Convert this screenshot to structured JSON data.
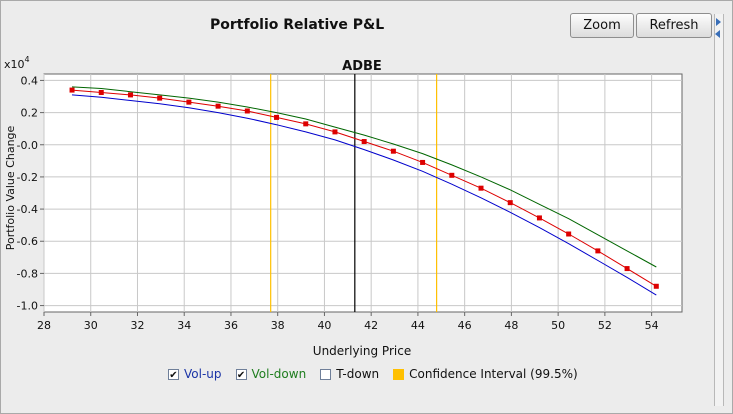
{
  "panel": {
    "title": "Portfolio Relative P&L",
    "zoom_label": "Zoom",
    "refresh_label": "Refresh"
  },
  "colors": {
    "vol_up": "#0000cc",
    "vol_down": "#006600",
    "tdown": "#dd0000",
    "confidence": "#ffc000",
    "current_price": "#000000"
  },
  "legend": {
    "items": [
      {
        "label": "Vol-up",
        "checked": true,
        "checkmark": "✔",
        "color": "#1a33a6"
      },
      {
        "label": "Vol-down",
        "checked": true,
        "checkmark": "✔",
        "color": "#1e7d1e"
      },
      {
        "label": "T-down",
        "checked": false,
        "checkmark": "",
        "color": "#111111"
      },
      {
        "label": "Confidence Interval (99.5%)",
        "swatch": "#ffc000",
        "color": "#111111"
      }
    ]
  },
  "chart_data": {
    "type": "line",
    "title": "ADBE",
    "xlabel": "Underlying Price",
    "ylabel": "Portfolio Value Change",
    "y_multiplier": "x10",
    "y_multiplier_exp": "4",
    "xlim": [
      28,
      55.3
    ],
    "ylim": [
      -1.04,
      0.44
    ],
    "xticks": [
      28,
      30,
      32,
      34,
      36,
      38,
      40,
      42,
      44,
      46,
      48,
      50,
      52,
      54
    ],
    "yticks": [
      0.4,
      0.2,
      0.0,
      -0.2,
      -0.4,
      -0.6,
      -0.8,
      -1.0
    ],
    "ytick_labels": [
      "0.4",
      "0.2",
      "-0.0",
      "-0.2",
      "-0.4",
      "-0.6",
      "-0.8",
      "-1.0"
    ],
    "grid": true,
    "current_price": 41.3,
    "confidence_interval": [
      37.7,
      44.8
    ],
    "x": [
      29.2,
      30.45,
      31.7,
      32.95,
      34.2,
      35.45,
      36.7,
      37.95,
      39.2,
      40.45,
      41.7,
      42.95,
      44.2,
      45.45,
      46.7,
      47.95,
      49.2,
      50.45,
      51.7,
      52.95,
      54.2
    ],
    "series": [
      {
        "name": "Vol-down",
        "values": [
          0.36,
          0.35,
          0.33,
          0.31,
          0.29,
          0.265,
          0.235,
          0.2,
          0.16,
          0.11,
          0.06,
          0.005,
          -0.055,
          -0.125,
          -0.2,
          -0.28,
          -0.37,
          -0.46,
          -0.56,
          -0.66,
          -0.76
        ]
      },
      {
        "name": "T-down",
        "values": [
          0.34,
          0.325,
          0.31,
          0.29,
          0.265,
          0.24,
          0.21,
          0.17,
          0.13,
          0.08,
          0.02,
          -0.04,
          -0.11,
          -0.19,
          -0.27,
          -0.36,
          -0.455,
          -0.555,
          -0.66,
          -0.77,
          -0.88
        ]
      },
      {
        "name": "Vol-up",
        "values": [
          0.31,
          0.295,
          0.275,
          0.255,
          0.23,
          0.2,
          0.165,
          0.125,
          0.08,
          0.03,
          -0.03,
          -0.095,
          -0.165,
          -0.245,
          -0.33,
          -0.42,
          -0.515,
          -0.615,
          -0.72,
          -0.825,
          -0.935
        ]
      }
    ]
  }
}
